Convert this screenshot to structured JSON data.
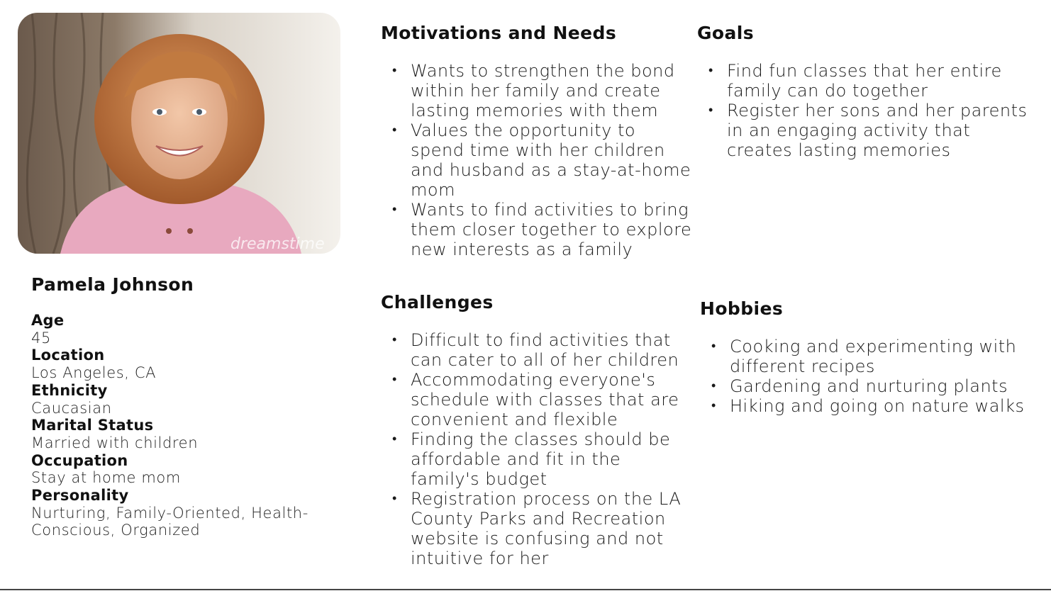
{
  "persona": {
    "photo_watermark": "dreamstime",
    "name": "Pamela Johnson",
    "attributes": [
      {
        "label": "Age",
        "value": "45"
      },
      {
        "label": "Location",
        "value": "Los Angeles, CA"
      },
      {
        "label": "Ethnicity",
        "value": "Caucasian"
      },
      {
        "label": "Marital Status",
        "value": "Married with children"
      },
      {
        "label": "Occupation",
        "value": "Stay at home mom"
      },
      {
        "label": "Personality",
        "value": "Nurturing, Family-Oriented, Health-Conscious, Organized"
      }
    ]
  },
  "sections": {
    "motivations": {
      "title": "Motivations and Needs",
      "items": [
        "Wants to strengthen the bond within her family and create lasting memories with them",
        "Values the opportunity to spend time with her children and husband as a stay-at-home mom",
        "Wants to find activities to bring them closer together to explore new interests as a family"
      ]
    },
    "goals": {
      "title": "Goals",
      "items": [
        "Find fun classes that her entire family can do together",
        "Register her sons and her parents in an engaging activity that creates lasting memories"
      ]
    },
    "challenges": {
      "title": "Challenges",
      "items": [
        "Difficult to find activities that can cater to all of her children",
        "Accommodating everyone's schedule with classes that are convenient and flexible",
        "Finding the classes should be affordable and fit in the family's budget",
        "Registration process on the LA County Parks and Recreation website is confusing and not intuitive for her"
      ]
    },
    "hobbies": {
      "title": "Hobbies",
      "items": [
        "Cooking and experimenting with different recipes",
        "Gardening and nurturing plants",
        "Hiking and going on nature walks"
      ]
    }
  }
}
